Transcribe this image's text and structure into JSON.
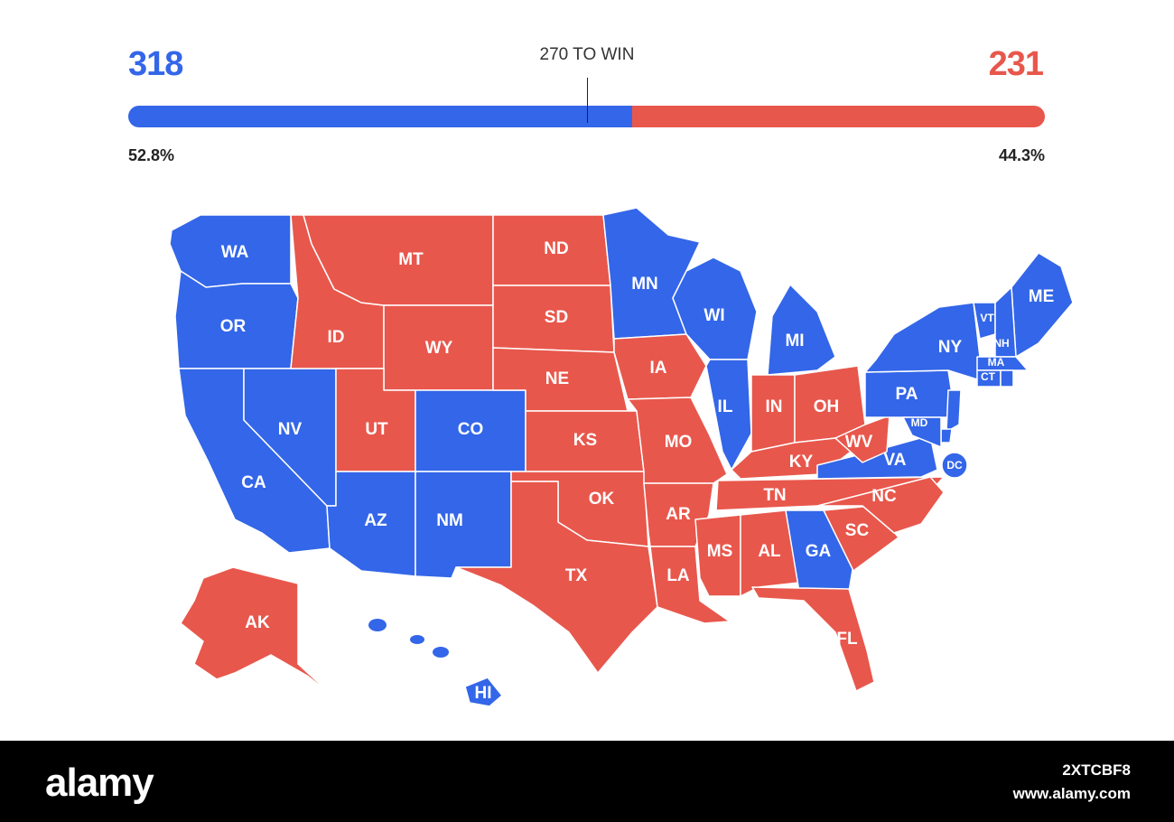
{
  "header": {
    "dem_votes": "318",
    "rep_votes": "231",
    "win_label": "270 TO WIN",
    "dem_pct": "52.8%",
    "rep_pct": "44.3%",
    "dem_share": 0.55,
    "colors": {
      "dem": "#3366e8",
      "rep": "#e8574c"
    }
  },
  "map": {
    "states": [
      {
        "abbr": "WA",
        "party": "dem"
      },
      {
        "abbr": "OR",
        "party": "dem"
      },
      {
        "abbr": "CA",
        "party": "dem"
      },
      {
        "abbr": "NV",
        "party": "dem"
      },
      {
        "abbr": "ID",
        "party": "rep"
      },
      {
        "abbr": "MT",
        "party": "rep"
      },
      {
        "abbr": "WY",
        "party": "rep"
      },
      {
        "abbr": "UT",
        "party": "rep"
      },
      {
        "abbr": "AZ",
        "party": "dem"
      },
      {
        "abbr": "CO",
        "party": "dem"
      },
      {
        "abbr": "NM",
        "party": "dem"
      },
      {
        "abbr": "ND",
        "party": "rep"
      },
      {
        "abbr": "SD",
        "party": "rep"
      },
      {
        "abbr": "NE",
        "party": "rep"
      },
      {
        "abbr": "KS",
        "party": "rep"
      },
      {
        "abbr": "OK",
        "party": "rep"
      },
      {
        "abbr": "TX",
        "party": "rep"
      },
      {
        "abbr": "MN",
        "party": "dem"
      },
      {
        "abbr": "IA",
        "party": "rep"
      },
      {
        "abbr": "MO",
        "party": "rep"
      },
      {
        "abbr": "AR",
        "party": "rep"
      },
      {
        "abbr": "LA",
        "party": "rep"
      },
      {
        "abbr": "WI",
        "party": "dem"
      },
      {
        "abbr": "IL",
        "party": "dem"
      },
      {
        "abbr": "MI",
        "party": "dem"
      },
      {
        "abbr": "IN",
        "party": "rep"
      },
      {
        "abbr": "OH",
        "party": "rep"
      },
      {
        "abbr": "KY",
        "party": "rep"
      },
      {
        "abbr": "TN",
        "party": "rep"
      },
      {
        "abbr": "MS",
        "party": "rep"
      },
      {
        "abbr": "AL",
        "party": "rep"
      },
      {
        "abbr": "GA",
        "party": "dem"
      },
      {
        "abbr": "FL",
        "party": "rep"
      },
      {
        "abbr": "SC",
        "party": "rep"
      },
      {
        "abbr": "NC",
        "party": "rep"
      },
      {
        "abbr": "VA",
        "party": "dem"
      },
      {
        "abbr": "WV",
        "party": "rep"
      },
      {
        "abbr": "PA",
        "party": "dem"
      },
      {
        "abbr": "NY",
        "party": "dem"
      },
      {
        "abbr": "ME",
        "party": "dem"
      },
      {
        "abbr": "VT",
        "party": "dem"
      },
      {
        "abbr": "NH",
        "party": "dem"
      },
      {
        "abbr": "MA",
        "party": "dem"
      },
      {
        "abbr": "CT",
        "party": "dem"
      },
      {
        "abbr": "RI",
        "party": "dem"
      },
      {
        "abbr": "NJ",
        "party": "dem"
      },
      {
        "abbr": "DE",
        "party": "dem"
      },
      {
        "abbr": "MD",
        "party": "dem"
      },
      {
        "abbr": "DC",
        "party": "dem"
      },
      {
        "abbr": "AK",
        "party": "rep"
      },
      {
        "abbr": "HI",
        "party": "dem"
      }
    ]
  },
  "footer": {
    "logo": "alamy",
    "image_id": "2XTCBF8",
    "site": "www.alamy.com"
  }
}
